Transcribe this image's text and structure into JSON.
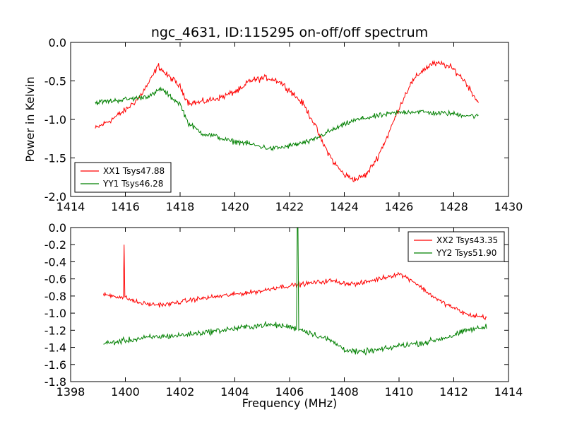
{
  "title": "ngc_4631, ID:115295 on-off/off spectrum",
  "colors": {
    "xx": "#ff0000",
    "yy": "#008000"
  },
  "chart_data": [
    {
      "type": "line",
      "ylabel": "Power in Kelvin",
      "xlabel": "",
      "xlim": [
        1414,
        1430
      ],
      "ylim": [
        -2.0,
        0.0
      ],
      "xticks": [
        "1414",
        "1416",
        "1418",
        "1420",
        "1422",
        "1424",
        "1426",
        "1428",
        "1430"
      ],
      "yticks": [
        "-2.0",
        "-1.5",
        "-1.0",
        "-0.5",
        "0.0"
      ],
      "legend_position": "lower-left",
      "series": [
        {
          "name": "XX1 Tsys47.88",
          "color": "#ff0000",
          "noise": 0.06,
          "x": [
            1414.9,
            1415.5,
            1416.0,
            1416.5,
            1416.9,
            1417.2,
            1417.5,
            1417.8,
            1418.0,
            1418.3,
            1418.7,
            1419.2,
            1419.6,
            1420.0,
            1420.3,
            1420.5,
            1420.8,
            1421.2,
            1421.6,
            1422.0,
            1422.5,
            1422.9,
            1423.2,
            1423.6,
            1424.0,
            1424.4,
            1424.8,
            1425.2,
            1425.6,
            1426.0,
            1426.4,
            1426.8,
            1427.2,
            1427.6,
            1428.0,
            1428.4,
            1428.9
          ],
          "y": [
            -1.12,
            -1.0,
            -0.88,
            -0.72,
            -0.5,
            -0.3,
            -0.42,
            -0.5,
            -0.58,
            -0.78,
            -0.78,
            -0.74,
            -0.7,
            -0.64,
            -0.6,
            -0.5,
            -0.48,
            -0.46,
            -0.5,
            -0.62,
            -0.8,
            -1.05,
            -1.3,
            -1.55,
            -1.72,
            -1.78,
            -1.72,
            -1.5,
            -1.2,
            -0.85,
            -0.55,
            -0.38,
            -0.28,
            -0.28,
            -0.35,
            -0.5,
            -0.78
          ]
        },
        {
          "name": "YY1 Tsys46.28",
          "color": "#008000",
          "noise": 0.05,
          "x": [
            1414.9,
            1415.5,
            1416.0,
            1416.5,
            1417.0,
            1417.3,
            1417.7,
            1418.0,
            1418.3,
            1418.8,
            1419.3,
            1419.8,
            1420.3,
            1420.8,
            1421.3,
            1421.8,
            1422.3,
            1422.8,
            1423.3,
            1423.8,
            1424.3,
            1424.8,
            1425.3,
            1425.8,
            1426.3,
            1426.8,
            1427.3,
            1427.8,
            1428.3,
            1428.9
          ],
          "y": [
            -0.78,
            -0.76,
            -0.74,
            -0.72,
            -0.68,
            -0.6,
            -0.72,
            -0.8,
            -1.05,
            -1.18,
            -1.22,
            -1.28,
            -1.3,
            -1.34,
            -1.38,
            -1.36,
            -1.32,
            -1.28,
            -1.18,
            -1.1,
            -1.02,
            -0.98,
            -0.95,
            -0.92,
            -0.9,
            -0.9,
            -0.92,
            -0.92,
            -0.94,
            -0.96
          ]
        }
      ]
    },
    {
      "type": "line",
      "ylabel": "",
      "xlabel": "Frequency (MHz)",
      "xlim": [
        1398,
        1414
      ],
      "ylim": [
        -1.8,
        0.0
      ],
      "xticks": [
        "1398",
        "1400",
        "1402",
        "1404",
        "1406",
        "1408",
        "1410",
        "1412",
        "1414"
      ],
      "yticks": [
        "-1.8",
        "-1.6",
        "-1.4",
        "-1.2",
        "-1.0",
        "-0.8",
        "-0.6",
        "-0.4",
        "-0.2",
        "0.0"
      ],
      "legend_position": "upper-right",
      "series": [
        {
          "name": "XX2 Tsys43.35",
          "color": "#ff0000",
          "noise": 0.04,
          "spike": {
            "x": 1399.95,
            "y": -0.2
          },
          "x": [
            1399.2,
            1399.6,
            1400.0,
            1400.5,
            1401.0,
            1401.5,
            1402.0,
            1402.5,
            1403.0,
            1403.5,
            1404.0,
            1404.5,
            1405.0,
            1405.5,
            1406.0,
            1406.5,
            1407.0,
            1407.5,
            1408.0,
            1408.5,
            1409.0,
            1409.5,
            1410.0,
            1410.5,
            1411.0,
            1411.5,
            1412.0,
            1412.5,
            1413.2
          ],
          "y": [
            -0.78,
            -0.8,
            -0.82,
            -0.88,
            -0.9,
            -0.9,
            -0.87,
            -0.84,
            -0.82,
            -0.8,
            -0.78,
            -0.76,
            -0.74,
            -0.7,
            -0.68,
            -0.66,
            -0.64,
            -0.62,
            -0.65,
            -0.66,
            -0.62,
            -0.58,
            -0.54,
            -0.62,
            -0.75,
            -0.86,
            -0.94,
            -1.02,
            -1.05
          ]
        },
        {
          "name": "YY2 Tsys51.90",
          "color": "#008000",
          "noise": 0.05,
          "spike": {
            "x": 1406.3,
            "y": 0.0
          },
          "x": [
            1399.2,
            1399.6,
            1400.0,
            1400.5,
            1401.0,
            1401.5,
            1402.0,
            1402.5,
            1403.0,
            1403.5,
            1404.0,
            1404.5,
            1405.0,
            1405.5,
            1406.0,
            1406.5,
            1407.0,
            1407.5,
            1408.0,
            1408.5,
            1409.0,
            1409.5,
            1410.0,
            1410.5,
            1411.0,
            1411.5,
            1412.0,
            1412.5,
            1413.2
          ],
          "y": [
            -1.36,
            -1.34,
            -1.32,
            -1.3,
            -1.28,
            -1.27,
            -1.26,
            -1.24,
            -1.22,
            -1.2,
            -1.18,
            -1.16,
            -1.14,
            -1.14,
            -1.16,
            -1.2,
            -1.26,
            -1.32,
            -1.42,
            -1.46,
            -1.44,
            -1.42,
            -1.38,
            -1.36,
            -1.34,
            -1.3,
            -1.26,
            -1.2,
            -1.16
          ]
        }
      ]
    }
  ]
}
